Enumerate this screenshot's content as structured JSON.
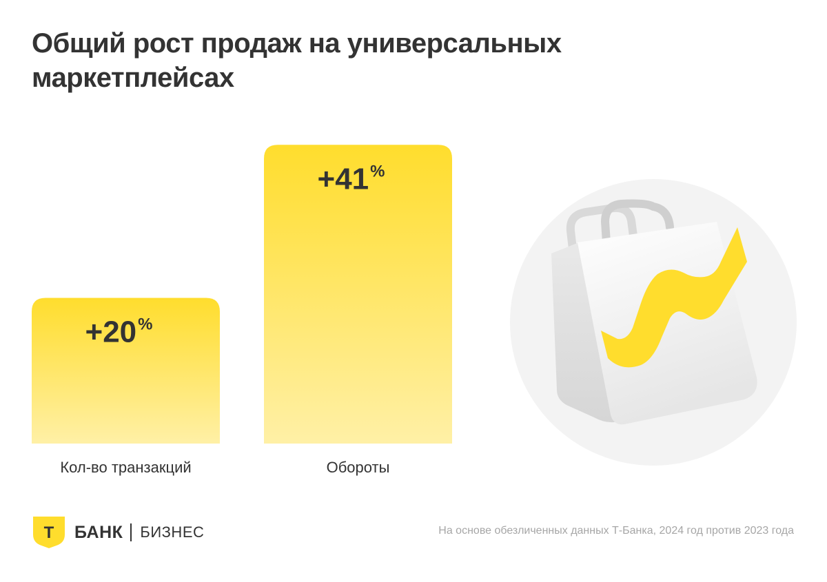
{
  "title": {
    "line1": "Общий рост продаж на универсальных",
    "line2": "маркетплейсах"
  },
  "chart_data": {
    "type": "bar",
    "title": "Общий рост продаж на универсальных маркетплейсах",
    "categories": [
      "Кол-во транзакций",
      "Обороты"
    ],
    "values": [
      20,
      41
    ],
    "value_labels": [
      "+20",
      "+41"
    ],
    "value_unit": "%",
    "xlabel": "",
    "ylabel": "",
    "ylim": [
      0,
      45
    ],
    "grid": false,
    "legend": "none"
  },
  "colors": {
    "bar_top": "#FFDD2D",
    "bar_bottom": "#FFF0A6",
    "text": "#333333",
    "footnote": "#A6A6A6",
    "accent": "#FFDD2D"
  },
  "illustration": {
    "icon": "shopping-bag-growth-icon"
  },
  "brand": {
    "logo_letter": "Т",
    "bank": "БАНК",
    "division": "БИЗНЕС"
  },
  "footnote": "На основе обезличенных данных Т-Банка, 2024 год против 2023 года"
}
